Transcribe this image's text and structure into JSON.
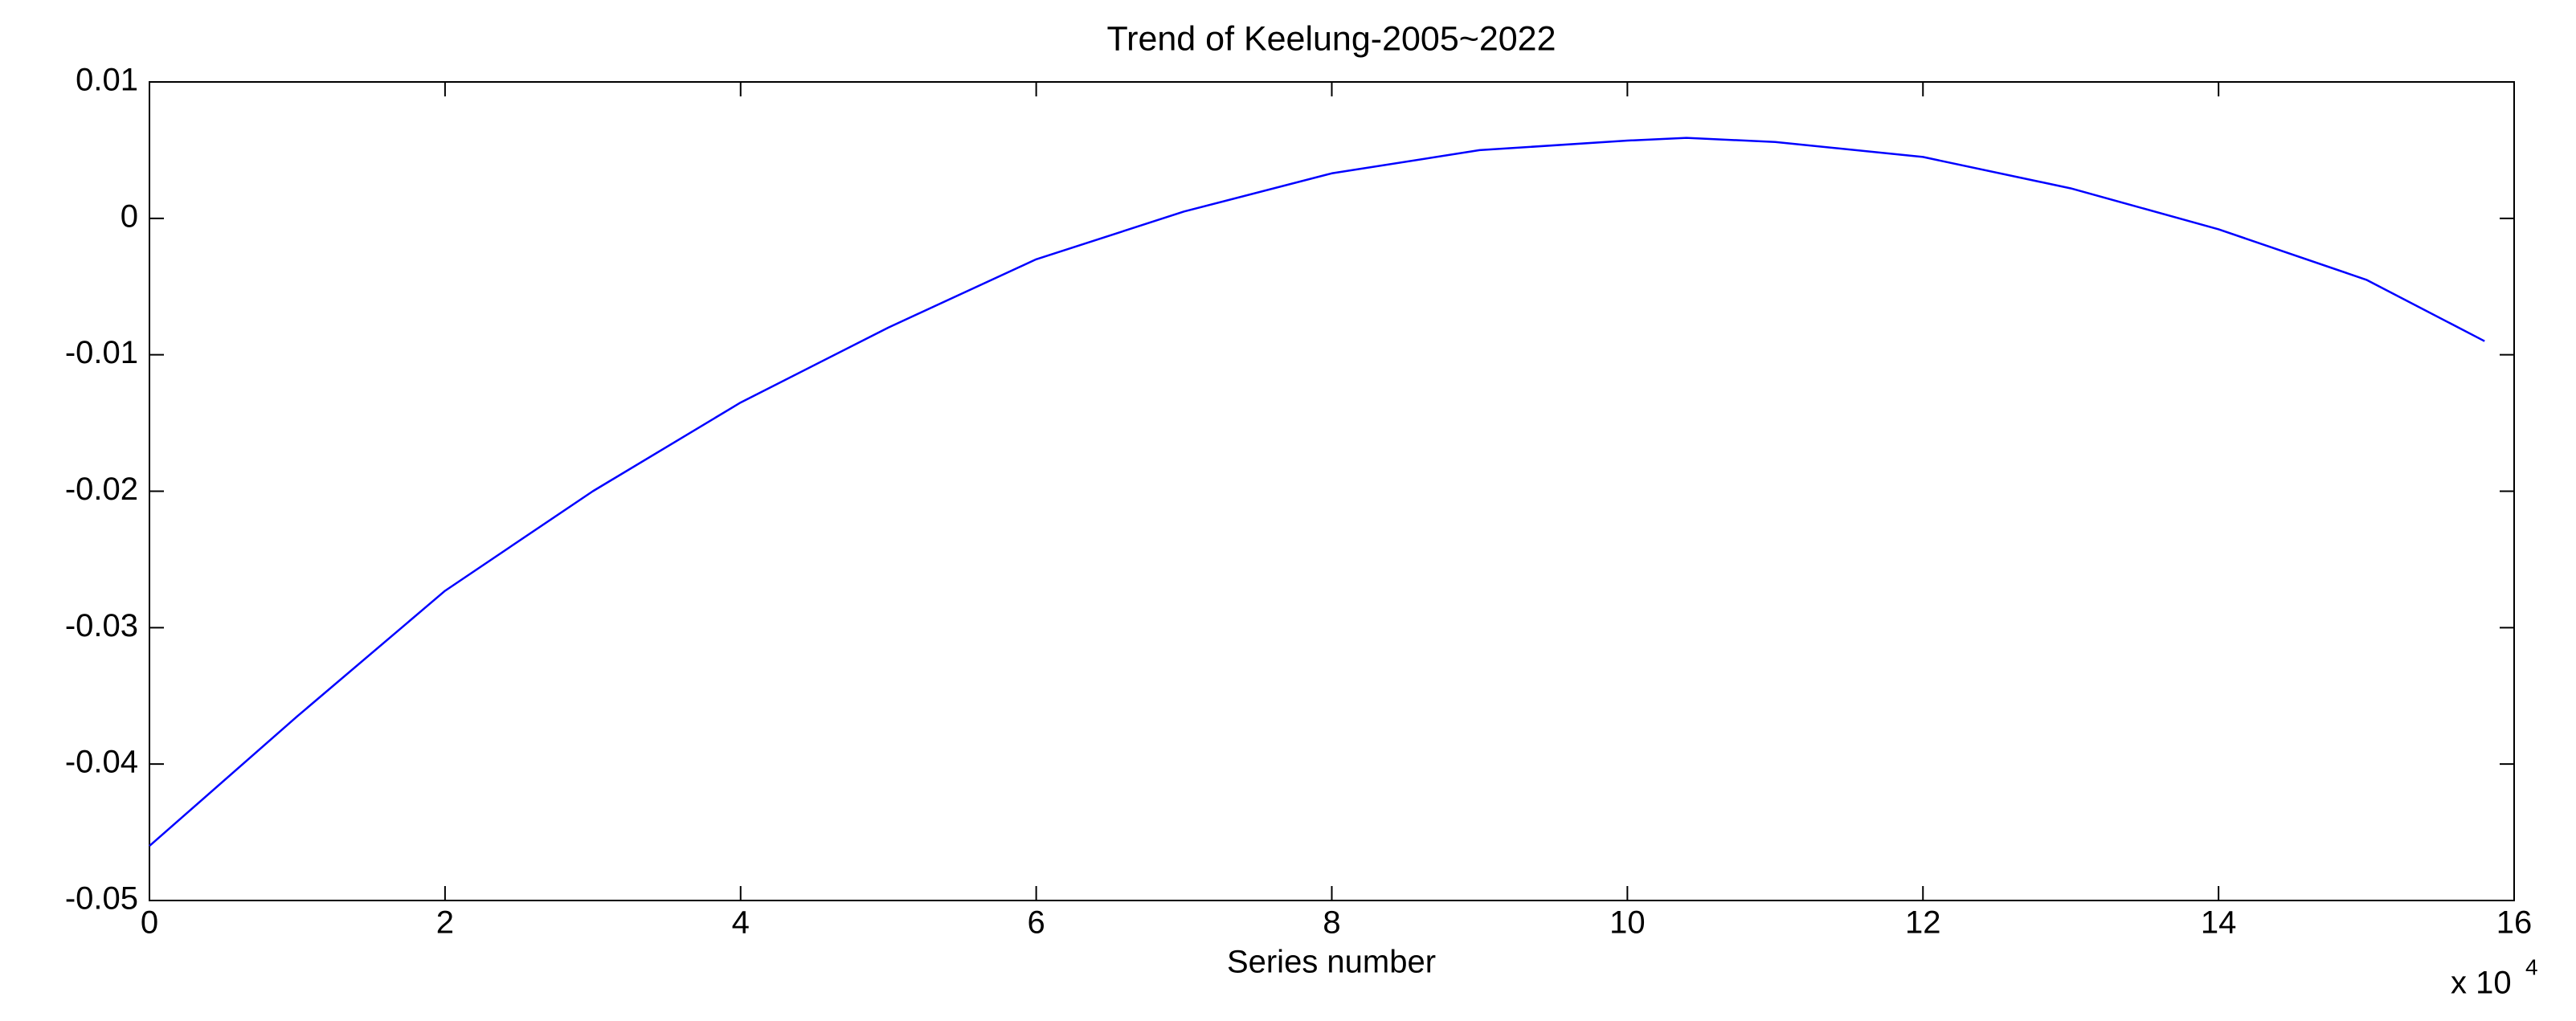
{
  "chart_data": {
    "type": "line",
    "title": "Trend of Keelung-2005~2022",
    "x_label": "Series number",
    "x_scale_label": "x 10",
    "x_scale_exponent": "4",
    "x": [
      0,
      1,
      2,
      3,
      4,
      5,
      6,
      7,
      8,
      9,
      10,
      10.4,
      11,
      12,
      13,
      14,
      15,
      15.8
    ],
    "series": [
      {
        "color": "#0000ff",
        "values": [
          -0.046,
          -0.0365,
          -0.0273,
          -0.02,
          -0.0135,
          -0.008,
          -0.003,
          0.0005,
          0.0033,
          0.005,
          0.0057,
          0.0059,
          0.0056,
          0.0045,
          0.0022,
          -0.0008,
          -0.0045,
          -0.009
        ]
      }
    ],
    "xlim": [
      0,
      16
    ],
    "xticks": [
      0,
      2,
      4,
      6,
      8,
      10,
      12,
      14,
      16
    ],
    "ylim": [
      -0.05,
      0.01
    ],
    "yticks": [
      -0.05,
      -0.04,
      -0.03,
      -0.02,
      -0.01,
      0,
      0.01
    ],
    "grid": false
  }
}
